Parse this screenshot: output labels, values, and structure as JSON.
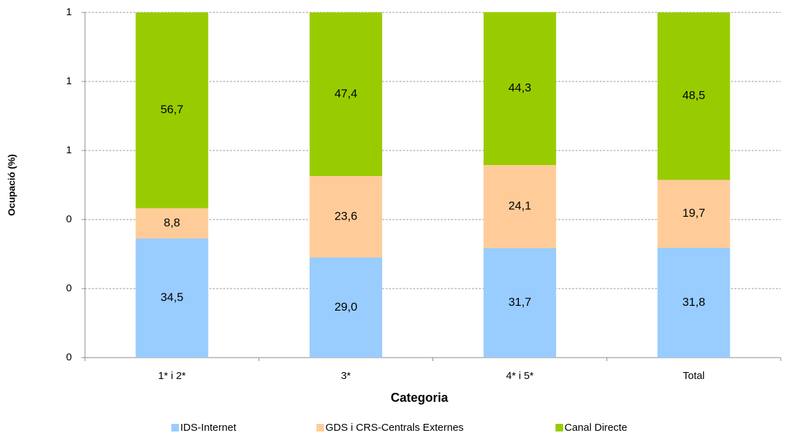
{
  "chart_data": {
    "type": "stacked_bar",
    "x_label": "Categoria",
    "y_label": "Ocupació (%)",
    "categories": [
      "1* i 2*",
      "3*",
      "4* i 5*",
      "Total"
    ],
    "series": [
      {
        "name": "IDS-Internet",
        "color": "#99ccff",
        "values": [
          0.345,
          0.29,
          0.317,
          0.318
        ],
        "value_labels": [
          "34,5",
          "29,0",
          "31,7",
          "31,8"
        ]
      },
      {
        "name": "GDS i CRS-Centrals Externes",
        "color": "#ffcc99",
        "values": [
          0.088,
          0.236,
          0.241,
          0.197
        ],
        "value_labels": [
          "8,8",
          "23,6",
          "24,1",
          "19,7"
        ]
      },
      {
        "name": "Canal Directe",
        "color": "#99cc00",
        "values": [
          0.567,
          0.474,
          0.443,
          0.485
        ],
        "value_labels": [
          "56,7",
          "47,4",
          "44,3",
          "48,5"
        ]
      }
    ],
    "ylim": [
      0,
      1
    ],
    "yticks": [
      0,
      {
        "value": 0.2,
        "label": "0"
      },
      {
        "value": 0.4,
        "label": "0"
      },
      {
        "value": 0.6,
        "label": "1"
      },
      {
        "value": 0.8,
        "label": "1"
      },
      1
    ],
    "grid": true,
    "legend": "bottom"
  }
}
